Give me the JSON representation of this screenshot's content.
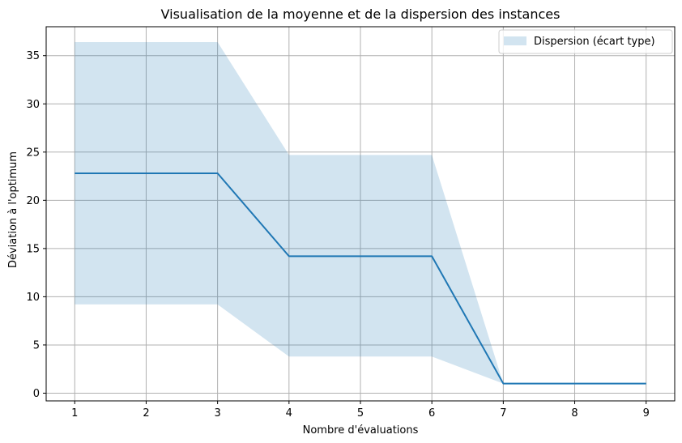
{
  "chart_data": {
    "type": "line",
    "title": "Visualisation de la moyenne et de la dispersion des instances",
    "xlabel": "Nombre d'évaluations",
    "ylabel": "Déviation à l'optimum",
    "x": [
      1,
      2,
      3,
      4,
      5,
      6,
      7,
      8,
      9
    ],
    "series": [
      {
        "values": [
          22.8,
          22.8,
          22.8,
          14.2,
          14.2,
          14.2,
          1.0,
          1.0,
          1.0
        ],
        "color": "#1f77b4"
      }
    ],
    "band": {
      "name": "Dispersion (écart type)",
      "lower": [
        9.2,
        9.2,
        9.2,
        3.8,
        3.8,
        3.8,
        1.0,
        1.0,
        1.0
      ],
      "upper": [
        36.4,
        36.4,
        36.4,
        24.7,
        24.7,
        24.7,
        1.0,
        1.0,
        1.0
      ],
      "color": "#1f77b4",
      "opacity": 0.2
    },
    "xlim": [
      0.6,
      9.4
    ],
    "ylim": [
      -0.8,
      38.0
    ],
    "xticks": [
      1,
      2,
      3,
      4,
      5,
      6,
      7,
      8,
      9
    ],
    "yticks": [
      0,
      5,
      10,
      15,
      20,
      25,
      30,
      35
    ],
    "grid": true,
    "legend": "top-right"
  }
}
